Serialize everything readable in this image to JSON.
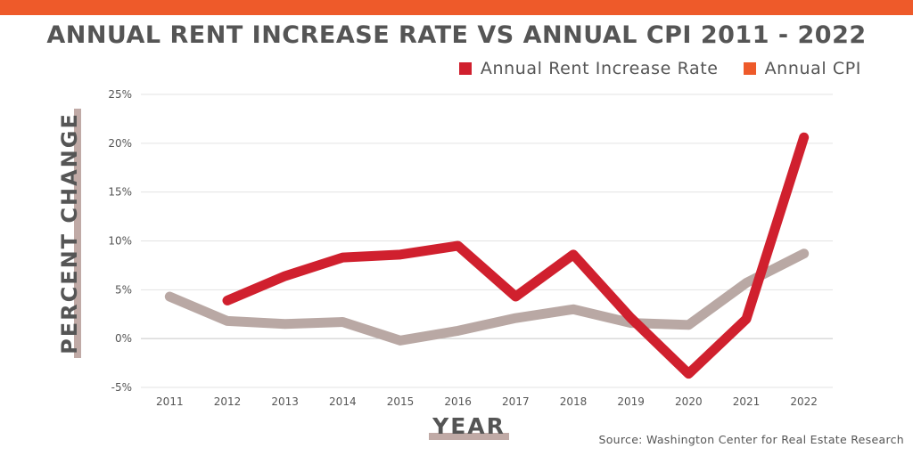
{
  "title": "ANNUAL RENT INCREASE RATE VS ANNUAL CPI 2011 - 2022",
  "legend": [
    {
      "label": "Annual Rent Increase Rate",
      "color": "#d0202e"
    },
    {
      "label": "Annual CPI",
      "color": "#ee5a2a"
    }
  ],
  "axes": {
    "ylabel": "PERCENT  CHANGE",
    "xlabel": "YEAR"
  },
  "source": "Source: Washington Center for Real Estate Research",
  "chart_data": {
    "type": "line",
    "title": "ANNUAL RENT INCREASE RATE VS ANNUAL CPI 2011 - 2022",
    "xlabel": "YEAR",
    "ylabel": "PERCENT  CHANGE",
    "categories": [
      "2011",
      "2012",
      "2013",
      "2014",
      "2015",
      "2016",
      "2017",
      "2018",
      "2019",
      "2020",
      "2021",
      "2022"
    ],
    "ylim": [
      -5,
      25
    ],
    "yticks": [
      -5,
      0,
      5,
      10,
      15,
      20,
      25
    ],
    "ytick_labels": [
      "-5%",
      "0%",
      "5%",
      "10%",
      "15%",
      "20%",
      "25%"
    ],
    "grid": true,
    "series": [
      {
        "name": "Annual Rent Increase Rate",
        "color": "#d0202e",
        "values": [
          null,
          3.9,
          6.4,
          8.3,
          8.6,
          9.5,
          4.3,
          8.6,
          2.1,
          -3.6,
          2.0,
          20.6
        ]
      },
      {
        "name": "Annual CPI",
        "color": "#b9a8a4",
        "values": [
          4.3,
          1.8,
          1.5,
          1.7,
          -0.2,
          0.8,
          2.1,
          3.0,
          1.6,
          1.4,
          5.7,
          8.7
        ]
      }
    ]
  }
}
